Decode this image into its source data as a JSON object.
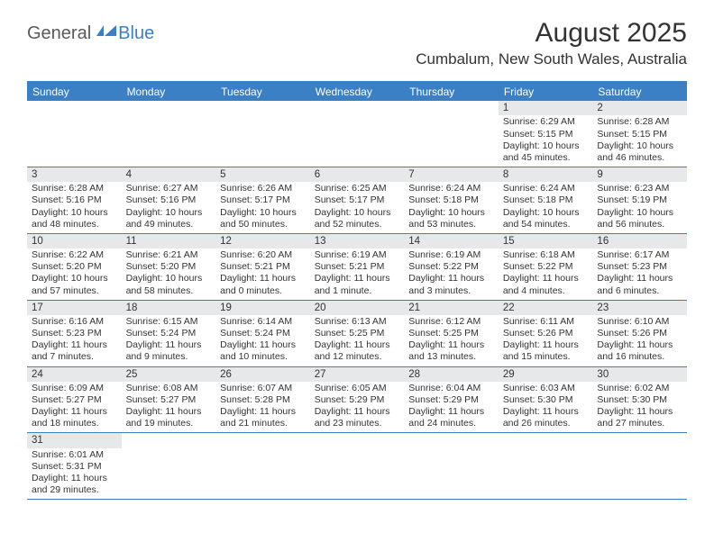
{
  "logo": {
    "part1": "General",
    "part2": "Blue"
  },
  "title": "August 2025",
  "location": "Cumbalum, New South Wales, Australia",
  "colors": {
    "brand": "#3b7fc4",
    "headbg": "#3b7fc4",
    "numbg": "#e6e8e9",
    "rule": "#3b7fc4"
  },
  "daynames": [
    "Sunday",
    "Monday",
    "Tuesday",
    "Wednesday",
    "Thursday",
    "Friday",
    "Saturday"
  ],
  "weeks": [
    [
      {
        "n": "",
        "empty": true
      },
      {
        "n": "",
        "empty": true
      },
      {
        "n": "",
        "empty": true
      },
      {
        "n": "",
        "empty": true
      },
      {
        "n": "",
        "empty": true
      },
      {
        "n": "1",
        "sr": "Sunrise: 6:29 AM",
        "ss": "Sunset: 5:15 PM",
        "dl": "Daylight: 10 hours and 45 minutes."
      },
      {
        "n": "2",
        "sr": "Sunrise: 6:28 AM",
        "ss": "Sunset: 5:15 PM",
        "dl": "Daylight: 10 hours and 46 minutes."
      }
    ],
    [
      {
        "n": "3",
        "sr": "Sunrise: 6:28 AM",
        "ss": "Sunset: 5:16 PM",
        "dl": "Daylight: 10 hours and 48 minutes."
      },
      {
        "n": "4",
        "sr": "Sunrise: 6:27 AM",
        "ss": "Sunset: 5:16 PM",
        "dl": "Daylight: 10 hours and 49 minutes."
      },
      {
        "n": "5",
        "sr": "Sunrise: 6:26 AM",
        "ss": "Sunset: 5:17 PM",
        "dl": "Daylight: 10 hours and 50 minutes."
      },
      {
        "n": "6",
        "sr": "Sunrise: 6:25 AM",
        "ss": "Sunset: 5:17 PM",
        "dl": "Daylight: 10 hours and 52 minutes."
      },
      {
        "n": "7",
        "sr": "Sunrise: 6:24 AM",
        "ss": "Sunset: 5:18 PM",
        "dl": "Daylight: 10 hours and 53 minutes."
      },
      {
        "n": "8",
        "sr": "Sunrise: 6:24 AM",
        "ss": "Sunset: 5:18 PM",
        "dl": "Daylight: 10 hours and 54 minutes."
      },
      {
        "n": "9",
        "sr": "Sunrise: 6:23 AM",
        "ss": "Sunset: 5:19 PM",
        "dl": "Daylight: 10 hours and 56 minutes."
      }
    ],
    [
      {
        "n": "10",
        "sr": "Sunrise: 6:22 AM",
        "ss": "Sunset: 5:20 PM",
        "dl": "Daylight: 10 hours and 57 minutes."
      },
      {
        "n": "11",
        "sr": "Sunrise: 6:21 AM",
        "ss": "Sunset: 5:20 PM",
        "dl": "Daylight: 10 hours and 58 minutes."
      },
      {
        "n": "12",
        "sr": "Sunrise: 6:20 AM",
        "ss": "Sunset: 5:21 PM",
        "dl": "Daylight: 11 hours and 0 minutes."
      },
      {
        "n": "13",
        "sr": "Sunrise: 6:19 AM",
        "ss": "Sunset: 5:21 PM",
        "dl": "Daylight: 11 hours and 1 minute."
      },
      {
        "n": "14",
        "sr": "Sunrise: 6:19 AM",
        "ss": "Sunset: 5:22 PM",
        "dl": "Daylight: 11 hours and 3 minutes."
      },
      {
        "n": "15",
        "sr": "Sunrise: 6:18 AM",
        "ss": "Sunset: 5:22 PM",
        "dl": "Daylight: 11 hours and 4 minutes."
      },
      {
        "n": "16",
        "sr": "Sunrise: 6:17 AM",
        "ss": "Sunset: 5:23 PM",
        "dl": "Daylight: 11 hours and 6 minutes."
      }
    ],
    [
      {
        "n": "17",
        "sr": "Sunrise: 6:16 AM",
        "ss": "Sunset: 5:23 PM",
        "dl": "Daylight: 11 hours and 7 minutes."
      },
      {
        "n": "18",
        "sr": "Sunrise: 6:15 AM",
        "ss": "Sunset: 5:24 PM",
        "dl": "Daylight: 11 hours and 9 minutes."
      },
      {
        "n": "19",
        "sr": "Sunrise: 6:14 AM",
        "ss": "Sunset: 5:24 PM",
        "dl": "Daylight: 11 hours and 10 minutes."
      },
      {
        "n": "20",
        "sr": "Sunrise: 6:13 AM",
        "ss": "Sunset: 5:25 PM",
        "dl": "Daylight: 11 hours and 12 minutes."
      },
      {
        "n": "21",
        "sr": "Sunrise: 6:12 AM",
        "ss": "Sunset: 5:25 PM",
        "dl": "Daylight: 11 hours and 13 minutes."
      },
      {
        "n": "22",
        "sr": "Sunrise: 6:11 AM",
        "ss": "Sunset: 5:26 PM",
        "dl": "Daylight: 11 hours and 15 minutes."
      },
      {
        "n": "23",
        "sr": "Sunrise: 6:10 AM",
        "ss": "Sunset: 5:26 PM",
        "dl": "Daylight: 11 hours and 16 minutes."
      }
    ],
    [
      {
        "n": "24",
        "sr": "Sunrise: 6:09 AM",
        "ss": "Sunset: 5:27 PM",
        "dl": "Daylight: 11 hours and 18 minutes."
      },
      {
        "n": "25",
        "sr": "Sunrise: 6:08 AM",
        "ss": "Sunset: 5:27 PM",
        "dl": "Daylight: 11 hours and 19 minutes."
      },
      {
        "n": "26",
        "sr": "Sunrise: 6:07 AM",
        "ss": "Sunset: 5:28 PM",
        "dl": "Daylight: 11 hours and 21 minutes."
      },
      {
        "n": "27",
        "sr": "Sunrise: 6:05 AM",
        "ss": "Sunset: 5:29 PM",
        "dl": "Daylight: 11 hours and 23 minutes."
      },
      {
        "n": "28",
        "sr": "Sunrise: 6:04 AM",
        "ss": "Sunset: 5:29 PM",
        "dl": "Daylight: 11 hours and 24 minutes."
      },
      {
        "n": "29",
        "sr": "Sunrise: 6:03 AM",
        "ss": "Sunset: 5:30 PM",
        "dl": "Daylight: 11 hours and 26 minutes."
      },
      {
        "n": "30",
        "sr": "Sunrise: 6:02 AM",
        "ss": "Sunset: 5:30 PM",
        "dl": "Daylight: 11 hours and 27 minutes."
      }
    ],
    [
      {
        "n": "31",
        "sr": "Sunrise: 6:01 AM",
        "ss": "Sunset: 5:31 PM",
        "dl": "Daylight: 11 hours and 29 minutes."
      },
      {
        "n": "",
        "empty": true
      },
      {
        "n": "",
        "empty": true
      },
      {
        "n": "",
        "empty": true
      },
      {
        "n": "",
        "empty": true
      },
      {
        "n": "",
        "empty": true
      },
      {
        "n": "",
        "empty": true
      }
    ]
  ]
}
